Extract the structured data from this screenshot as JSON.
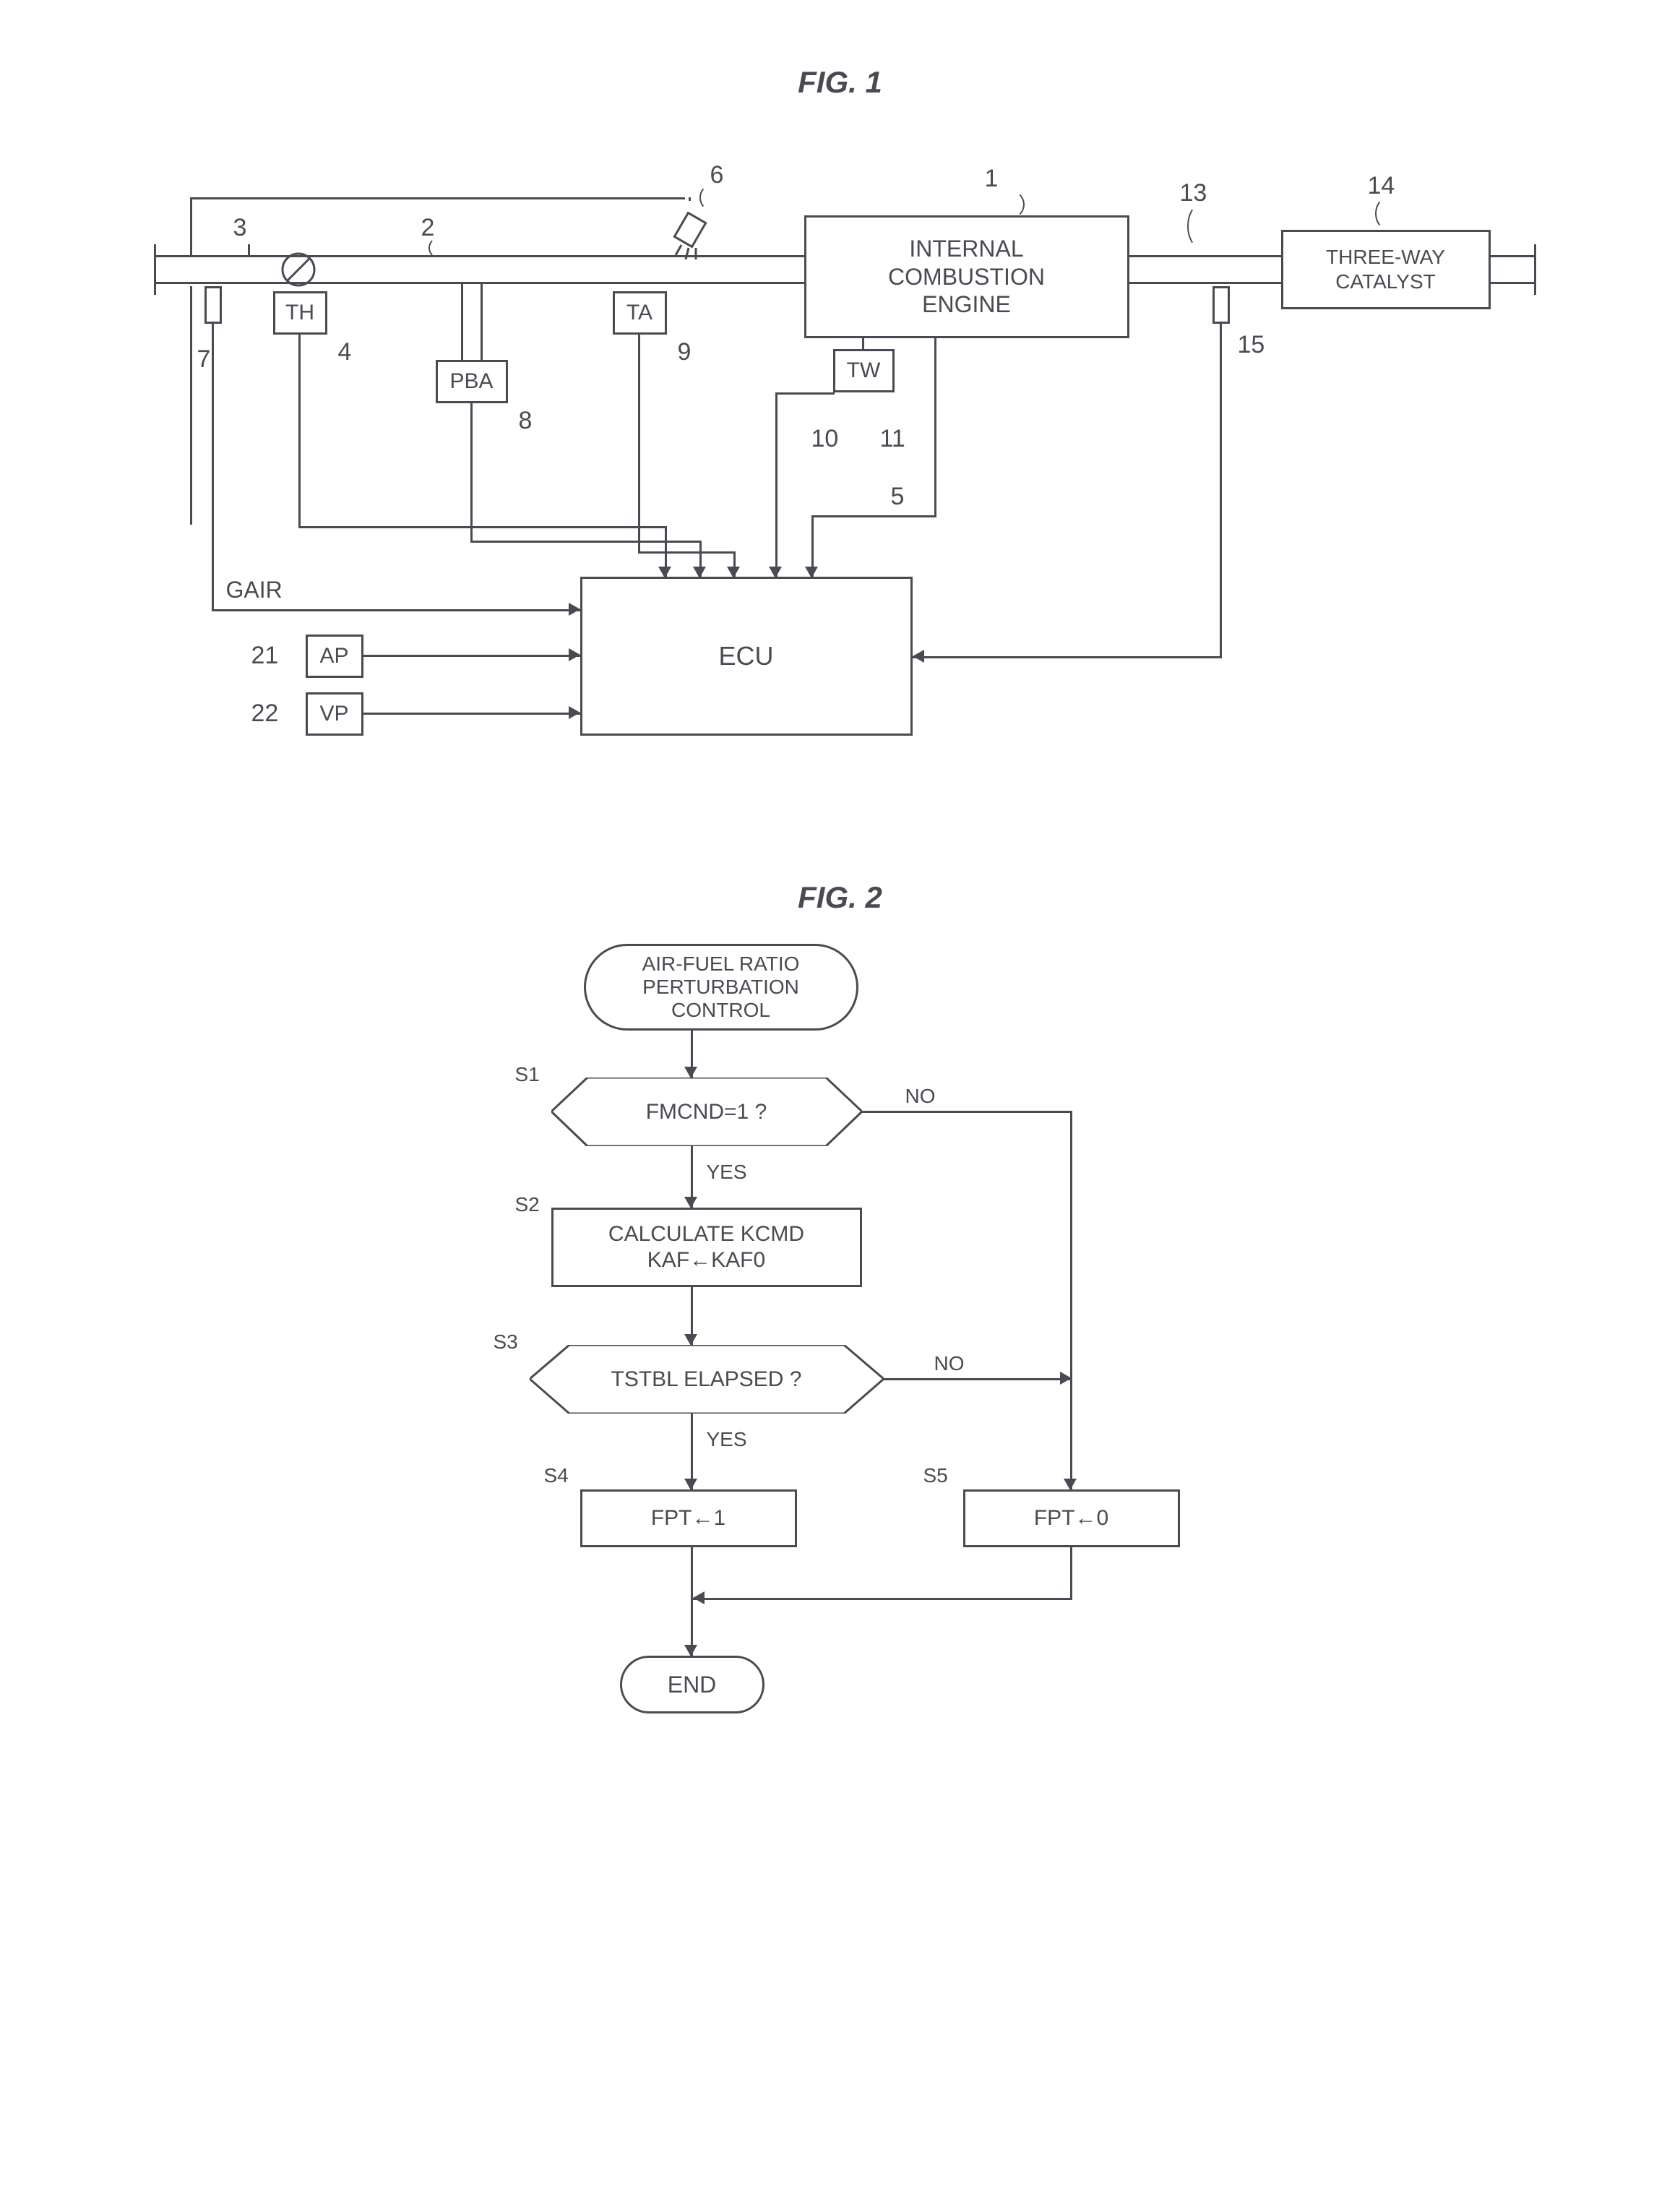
{
  "fig1": {
    "title": "FIG. 1",
    "engine": "INTERNAL\nCOMBUSTION\nENGINE",
    "catalyst": "THREE-WAY\nCATALYST",
    "ecu": "ECU",
    "sensors": {
      "th": "TH",
      "pba": "PBA",
      "ta": "TA",
      "tw": "TW",
      "ap": "AP",
      "vp": "VP"
    },
    "gair": "GAIR",
    "ref": {
      "n1": "1",
      "n2": "2",
      "n3": "3",
      "n4": "4",
      "n5": "5",
      "n6": "6",
      "n7": "7",
      "n8": "8",
      "n9": "9",
      "n10": "10",
      "n11": "11",
      "n13": "13",
      "n14": "14",
      "n15": "15",
      "n21": "21",
      "n22": "22"
    }
  },
  "fig2": {
    "title": "FIG. 2",
    "start": "AIR-FUEL RATIO\nPERTURBATION\nCONTROL",
    "s1": "FMCND=1 ?",
    "s2": "CALCULATE KCMD\nKAF←KAF0",
    "s3": "TSTBL ELAPSED ?",
    "s4": "FPT←1",
    "s5": "FPT←0",
    "end": "END",
    "labels": {
      "s1": "S1",
      "s2": "S2",
      "s3": "S3",
      "s4": "S4",
      "s5": "S5",
      "yes": "YES",
      "no": "NO"
    }
  },
  "style": {
    "stroke": "#4a4a52",
    "stroke_width": 3,
    "font_family": "Arial, sans-serif",
    "title_fontsize": 42,
    "box_fontsize": 30,
    "label_fontsize": 34,
    "flow_fontsize": 30,
    "background": "#ffffff"
  }
}
